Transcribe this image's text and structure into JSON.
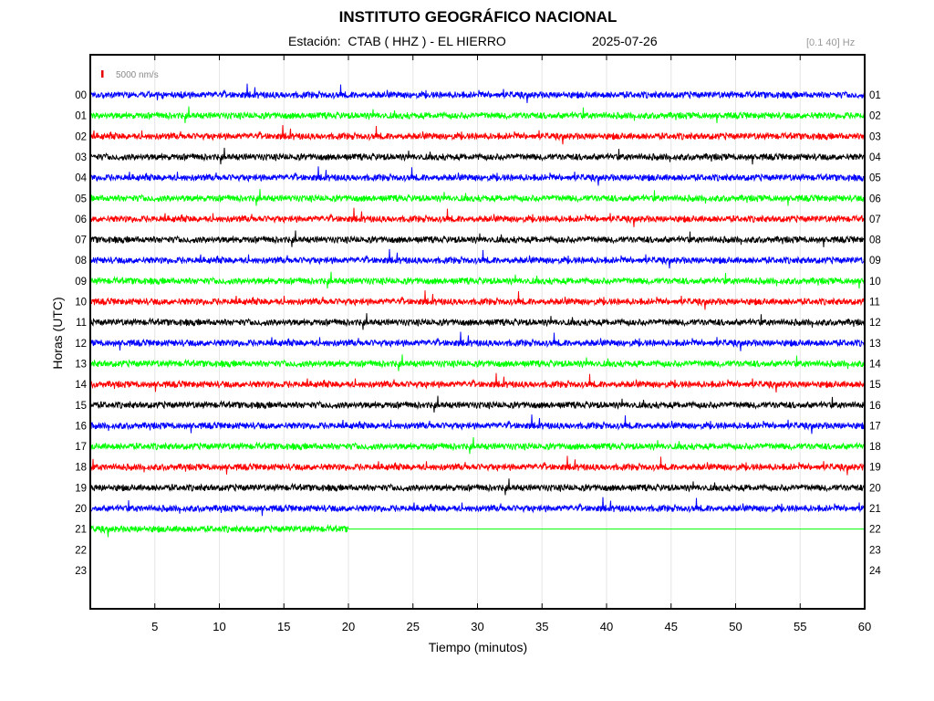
{
  "header": {
    "title": "INSTITUTO GEOGRÁFICO NACIONAL",
    "station": "Estación:  CTAB ( HHZ ) - EL HIERRO",
    "date": "2025-07-26",
    "band": "[0.1 40] Hz"
  },
  "chart_data": {
    "type": "line",
    "title": "INSTITUTO GEOGRÁFICO NACIONAL",
    "xlabel": "Tiempo (minutos)",
    "ylabel": "Horas (UTC)",
    "xlim": [
      0,
      60
    ],
    "x_ticks": [
      5,
      10,
      15,
      20,
      25,
      30,
      35,
      40,
      45,
      50,
      55,
      60
    ],
    "grid": true,
    "scale_label": "5000 nm/s",
    "scale_color": "#e8000b",
    "left_hour_labels": [
      "00",
      "01",
      "02",
      "03",
      "04",
      "05",
      "06",
      "07",
      "08",
      "09",
      "10",
      "11",
      "12",
      "13",
      "14",
      "15",
      "16",
      "17",
      "18",
      "19",
      "20",
      "21",
      "22",
      "23"
    ],
    "right_hour_labels": [
      "01",
      "02",
      "03",
      "04",
      "05",
      "06",
      "07",
      "08",
      "09",
      "10",
      "11",
      "12",
      "13",
      "14",
      "15",
      "16",
      "17",
      "18",
      "19",
      "20",
      "21",
      "22",
      "23",
      "24"
    ],
    "series": [
      {
        "hour": "00",
        "color": "#0000ff",
        "recorded_minutes": 60
      },
      {
        "hour": "01",
        "color": "#00ff00",
        "recorded_minutes": 60
      },
      {
        "hour": "02",
        "color": "#ff0000",
        "recorded_minutes": 60
      },
      {
        "hour": "03",
        "color": "#000000",
        "recorded_minutes": 60
      },
      {
        "hour": "04",
        "color": "#0000ff",
        "recorded_minutes": 60
      },
      {
        "hour": "05",
        "color": "#00ff00",
        "recorded_minutes": 60
      },
      {
        "hour": "06",
        "color": "#ff0000",
        "recorded_minutes": 60
      },
      {
        "hour": "07",
        "color": "#000000",
        "recorded_minutes": 60
      },
      {
        "hour": "08",
        "color": "#0000ff",
        "recorded_minutes": 60
      },
      {
        "hour": "09",
        "color": "#00ff00",
        "recorded_minutes": 60
      },
      {
        "hour": "10",
        "color": "#ff0000",
        "recorded_minutes": 60
      },
      {
        "hour": "11",
        "color": "#000000",
        "recorded_minutes": 60
      },
      {
        "hour": "12",
        "color": "#0000ff",
        "recorded_minutes": 60
      },
      {
        "hour": "13",
        "color": "#00ff00",
        "recorded_minutes": 60
      },
      {
        "hour": "14",
        "color": "#ff0000",
        "recorded_minutes": 60
      },
      {
        "hour": "15",
        "color": "#000000",
        "recorded_minutes": 60
      },
      {
        "hour": "16",
        "color": "#0000ff",
        "recorded_minutes": 60
      },
      {
        "hour": "17",
        "color": "#00ff00",
        "recorded_minutes": 60
      },
      {
        "hour": "18",
        "color": "#ff0000",
        "recorded_minutes": 60
      },
      {
        "hour": "19",
        "color": "#000000",
        "recorded_minutes": 60
      },
      {
        "hour": "20",
        "color": "#0000ff",
        "recorded_minutes": 60
      },
      {
        "hour": "21",
        "color": "#00ff00",
        "recorded_minutes": 20
      }
    ]
  }
}
